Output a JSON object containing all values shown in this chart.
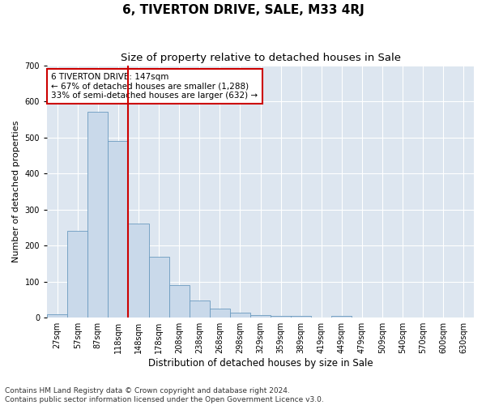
{
  "title": "6, TIVERTON DRIVE, SALE, M33 4RJ",
  "subtitle": "Size of property relative to detached houses in Sale",
  "xlabel": "Distribution of detached houses by size in Sale",
  "ylabel": "Number of detached properties",
  "categories": [
    "27sqm",
    "57sqm",
    "87sqm",
    "118sqm",
    "148sqm",
    "178sqm",
    "208sqm",
    "238sqm",
    "268sqm",
    "298sqm",
    "329sqm",
    "359sqm",
    "389sqm",
    "419sqm",
    "449sqm",
    "479sqm",
    "509sqm",
    "540sqm",
    "570sqm",
    "600sqm",
    "630sqm"
  ],
  "values": [
    10,
    240,
    570,
    490,
    260,
    170,
    90,
    47,
    25,
    13,
    8,
    5,
    5,
    0,
    5,
    0,
    0,
    0,
    0,
    0,
    0
  ],
  "bar_color": "#c9d9ea",
  "bar_edge_color": "#6a9abf",
  "subject_line_color": "#cc0000",
  "subject_line_index": 3.5,
  "annotation_text": "6 TIVERTON DRIVE: 147sqm\n← 67% of detached houses are smaller (1,288)\n33% of semi-detached houses are larger (632) →",
  "annotation_box_color": "#cc0000",
  "ylim": [
    0,
    700
  ],
  "yticks": [
    0,
    100,
    200,
    300,
    400,
    500,
    600,
    700
  ],
  "background_color": "#dde6f0",
  "footer_text": "Contains HM Land Registry data © Crown copyright and database right 2024.\nContains public sector information licensed under the Open Government Licence v3.0.",
  "title_fontsize": 11,
  "subtitle_fontsize": 9.5,
  "xlabel_fontsize": 8.5,
  "ylabel_fontsize": 8,
  "annotation_fontsize": 7.5,
  "footer_fontsize": 6.5,
  "tick_fontsize": 7
}
